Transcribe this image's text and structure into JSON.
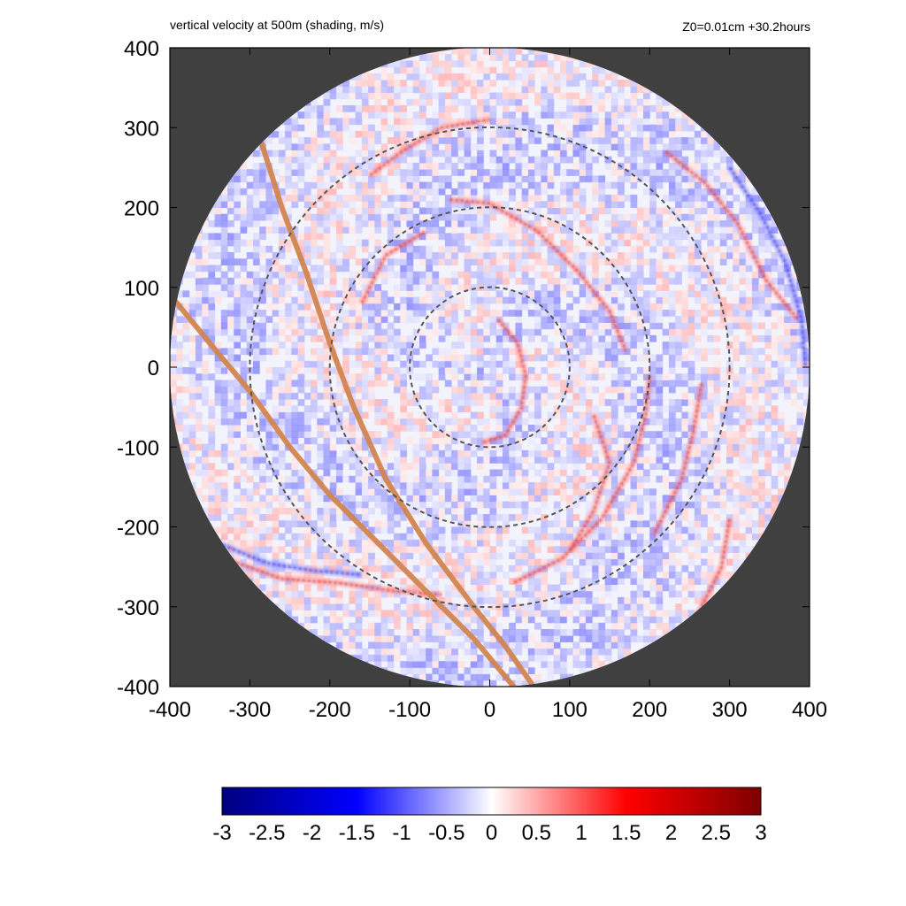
{
  "title_left": "vertical velocity at 500m (shading, m/s)",
  "title_right": "Z0=0.01cm  +30.2hours",
  "chart_data": {
    "type": "heatmap",
    "title": "vertical velocity at 500m (shading, m/s)",
    "annotation": "Z0=0.01cm  +30.2hours",
    "xlabel": "",
    "ylabel": "",
    "xlim": [
      -400,
      400
    ],
    "ylim": [
      -400,
      400
    ],
    "x_ticks": [
      -400,
      -300,
      -200,
      -100,
      0,
      100,
      200,
      300,
      400
    ],
    "y_ticks": [
      -400,
      -300,
      -200,
      -100,
      0,
      100,
      200,
      300,
      400
    ],
    "domain_radius": 400,
    "range_rings": [
      100,
      200,
      300
    ],
    "colorbar": {
      "min": -3,
      "max": 3,
      "ticks": [
        "-3",
        "-2.5",
        "-2",
        "-1.5",
        "-1",
        "-0.5",
        "0",
        "0.5",
        "1",
        "1.5",
        "2",
        "2.5",
        "3"
      ],
      "colors": [
        "#00007f",
        "#0000ff",
        "#ffffff",
        "#ff0000",
        "#7f0000"
      ]
    },
    "tracks": [
      {
        "points": [
          [
            -285,
            280
          ],
          [
            -260,
            200
          ],
          [
            -230,
            120
          ],
          [
            -200,
            30
          ],
          [
            -170,
            -50
          ],
          [
            -130,
            -140
          ],
          [
            -80,
            -220
          ],
          [
            -20,
            -300
          ],
          [
            20,
            -350
          ],
          [
            55,
            -400
          ]
        ]
      },
      {
        "points": [
          [
            -395,
            85
          ],
          [
            -350,
            30
          ],
          [
            -300,
            -30
          ],
          [
            -250,
            -100
          ],
          [
            -200,
            -160
          ],
          [
            -140,
            -220
          ],
          [
            -80,
            -280
          ],
          [
            -20,
            -340
          ],
          [
            30,
            -400
          ]
        ]
      }
    ],
    "rainbands": [
      {
        "sign": 1,
        "points": [
          [
            10,
            60
          ],
          [
            35,
            30
          ],
          [
            45,
            -10
          ],
          [
            40,
            -50
          ],
          [
            20,
            -85
          ],
          [
            -10,
            -95
          ]
        ]
      },
      {
        "sign": 1,
        "points": [
          [
            -50,
            210
          ],
          [
            0,
            205
          ],
          [
            60,
            170
          ],
          [
            110,
            120
          ],
          [
            150,
            70
          ],
          [
            170,
            20
          ]
        ]
      },
      {
        "sign": 1,
        "points": [
          [
            200,
            -10
          ],
          [
            195,
            -60
          ],
          [
            180,
            -120
          ],
          [
            140,
            -190
          ],
          [
            90,
            -240
          ],
          [
            30,
            -270
          ]
        ]
      },
      {
        "sign": 1,
        "points": [
          [
            265,
            -20
          ],
          [
            255,
            -80
          ],
          [
            240,
            -140
          ],
          [
            220,
            -180
          ],
          [
            205,
            -210
          ]
        ]
      },
      {
        "sign": 1,
        "points": [
          [
            220,
            270
          ],
          [
            270,
            230
          ],
          [
            310,
            180
          ],
          [
            345,
            110
          ],
          [
            385,
            60
          ]
        ]
      },
      {
        "sign": 1,
        "points": [
          [
            -330,
            -240
          ],
          [
            -260,
            -265
          ],
          [
            -190,
            -270
          ],
          [
            -120,
            -280
          ],
          [
            -60,
            -285
          ]
        ]
      },
      {
        "sign": 1,
        "points": [
          [
            -150,
            240
          ],
          [
            -110,
            270
          ],
          [
            -60,
            300
          ],
          [
            0,
            310
          ]
        ]
      },
      {
        "sign": -1,
        "points": [
          [
            -340,
            -220
          ],
          [
            -280,
            -245
          ],
          [
            -220,
            -255
          ],
          [
            -160,
            -260
          ]
        ]
      },
      {
        "sign": -1,
        "points": [
          [
            300,
            250
          ],
          [
            340,
            190
          ],
          [
            370,
            130
          ],
          [
            390,
            60
          ],
          [
            395,
            0
          ]
        ]
      },
      {
        "sign": 1,
        "points": [
          [
            130,
            -60
          ],
          [
            150,
            -120
          ],
          [
            130,
            -180
          ],
          [
            100,
            -230
          ]
        ]
      },
      {
        "sign": 1,
        "points": [
          [
            -160,
            80
          ],
          [
            -130,
            140
          ],
          [
            -80,
            170
          ]
        ]
      },
      {
        "sign": 1,
        "points": [
          [
            300,
            -190
          ],
          [
            290,
            -250
          ],
          [
            260,
            -310
          ]
        ]
      }
    ]
  }
}
